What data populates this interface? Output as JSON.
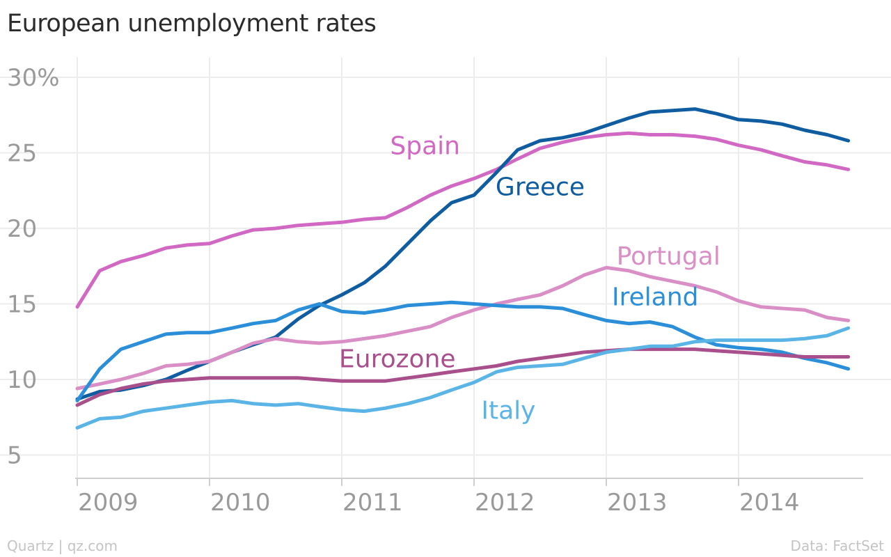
{
  "title": "European unemployment rates",
  "footer": {
    "credit": "Quartz | qz.com",
    "source": "Data: FactSet"
  },
  "chart_data": {
    "type": "line",
    "title": "European unemployment rates",
    "xlabel": "",
    "ylabel": "",
    "x_ticks": [
      "2009",
      "2010",
      "2011",
      "2012",
      "2013",
      "2014"
    ],
    "xlim": [
      2009.0,
      2015.0
    ],
    "y_ticks": [
      "30%",
      "25",
      "20",
      "15",
      "10",
      "5"
    ],
    "y_tick_values": [
      30,
      25,
      20,
      15,
      10,
      5
    ],
    "ylim": [
      3,
      31
    ],
    "grid": true,
    "legend": "inline labels",
    "series": [
      {
        "name": "Spain",
        "color": "#d169c4",
        "x": [
          2009.0,
          2009.17,
          2009.33,
          2009.5,
          2009.67,
          2009.83,
          2010.0,
          2010.17,
          2010.33,
          2010.5,
          2010.67,
          2010.83,
          2011.0,
          2011.17,
          2011.33,
          2011.5,
          2011.67,
          2011.83,
          2012.0,
          2012.17,
          2012.33,
          2012.5,
          2012.67,
          2012.83,
          2013.0,
          2013.17,
          2013.33,
          2013.5,
          2013.67,
          2013.83,
          2014.0,
          2014.17,
          2014.33,
          2014.5,
          2014.67,
          2014.83
        ],
        "y": [
          14.8,
          17.2,
          17.8,
          18.2,
          18.7,
          18.9,
          19.0,
          19.5,
          19.9,
          20.0,
          20.2,
          20.3,
          20.4,
          20.6,
          20.7,
          21.4,
          22.2,
          22.8,
          23.3,
          23.9,
          24.6,
          25.3,
          25.7,
          26.0,
          26.2,
          26.3,
          26.2,
          26.2,
          26.1,
          25.9,
          25.5,
          25.2,
          24.8,
          24.4,
          24.2,
          23.9
        ]
      },
      {
        "name": "Greece",
        "color": "#0f5da0",
        "x": [
          2009.0,
          2009.17,
          2009.33,
          2009.5,
          2009.67,
          2009.83,
          2010.0,
          2010.17,
          2010.33,
          2010.5,
          2010.67,
          2010.83,
          2011.0,
          2011.17,
          2011.33,
          2011.5,
          2011.67,
          2011.83,
          2012.0,
          2012.17,
          2012.33,
          2012.5,
          2012.67,
          2012.83,
          2013.0,
          2013.17,
          2013.33,
          2013.5,
          2013.67,
          2013.83,
          2014.0,
          2014.17,
          2014.33,
          2014.5,
          2014.67,
          2014.83
        ],
        "y": [
          8.7,
          9.2,
          9.3,
          9.6,
          10.0,
          10.6,
          11.2,
          11.8,
          12.3,
          12.8,
          14.0,
          14.9,
          15.6,
          16.4,
          17.5,
          19.0,
          20.5,
          21.7,
          22.2,
          23.7,
          25.2,
          25.8,
          26.0,
          26.3,
          26.8,
          27.3,
          27.7,
          27.8,
          27.9,
          27.6,
          27.2,
          27.1,
          26.9,
          26.5,
          26.2,
          25.8
        ]
      },
      {
        "name": "Portugal",
        "color": "#d98fc6",
        "x": [
          2009.0,
          2009.17,
          2009.33,
          2009.5,
          2009.67,
          2009.83,
          2010.0,
          2010.17,
          2010.33,
          2010.5,
          2010.67,
          2010.83,
          2011.0,
          2011.17,
          2011.33,
          2011.5,
          2011.67,
          2011.83,
          2012.0,
          2012.17,
          2012.33,
          2012.5,
          2012.67,
          2012.83,
          2013.0,
          2013.17,
          2013.33,
          2013.5,
          2013.67,
          2013.83,
          2014.0,
          2014.17,
          2014.33,
          2014.5,
          2014.67,
          2014.83
        ],
        "y": [
          9.4,
          9.7,
          10.0,
          10.4,
          10.9,
          11.0,
          11.2,
          11.8,
          12.4,
          12.7,
          12.5,
          12.4,
          12.5,
          12.7,
          12.9,
          13.2,
          13.5,
          14.1,
          14.6,
          15.0,
          15.3,
          15.6,
          16.2,
          16.9,
          17.4,
          17.2,
          16.8,
          16.5,
          16.2,
          15.8,
          15.2,
          14.8,
          14.7,
          14.6,
          14.1,
          13.9
        ]
      },
      {
        "name": "Ireland",
        "color": "#2a8fd8",
        "x": [
          2009.0,
          2009.17,
          2009.33,
          2009.5,
          2009.67,
          2009.83,
          2010.0,
          2010.17,
          2010.33,
          2010.5,
          2010.67,
          2010.83,
          2011.0,
          2011.17,
          2011.33,
          2011.5,
          2011.67,
          2011.83,
          2012.0,
          2012.17,
          2012.33,
          2012.5,
          2012.67,
          2012.83,
          2013.0,
          2013.17,
          2013.33,
          2013.5,
          2013.67,
          2013.83,
          2014.0,
          2014.17,
          2014.33,
          2014.5,
          2014.67,
          2014.83
        ],
        "y": [
          8.6,
          10.7,
          12.0,
          12.5,
          13.0,
          13.1,
          13.1,
          13.4,
          13.7,
          13.9,
          14.6,
          15.0,
          14.5,
          14.4,
          14.6,
          14.9,
          15.0,
          15.1,
          15.0,
          14.9,
          14.8,
          14.8,
          14.7,
          14.3,
          13.9,
          13.7,
          13.8,
          13.5,
          12.8,
          12.3,
          12.1,
          12.0,
          11.8,
          11.4,
          11.1,
          10.7
        ]
      },
      {
        "name": "Eurozone",
        "color": "#a84f8c",
        "x": [
          2009.0,
          2009.17,
          2009.33,
          2009.5,
          2009.67,
          2009.83,
          2010.0,
          2010.17,
          2010.33,
          2010.5,
          2010.67,
          2010.83,
          2011.0,
          2011.17,
          2011.33,
          2011.5,
          2011.67,
          2011.83,
          2012.0,
          2012.17,
          2012.33,
          2012.5,
          2012.67,
          2012.83,
          2013.0,
          2013.17,
          2013.33,
          2013.5,
          2013.67,
          2013.83,
          2014.0,
          2014.17,
          2014.33,
          2014.5,
          2014.67,
          2014.83
        ],
        "y": [
          8.3,
          9.0,
          9.4,
          9.7,
          9.9,
          10.0,
          10.1,
          10.1,
          10.1,
          10.1,
          10.1,
          10.0,
          9.9,
          9.9,
          9.9,
          10.1,
          10.3,
          10.5,
          10.7,
          10.9,
          11.2,
          11.4,
          11.6,
          11.8,
          11.9,
          12.0,
          12.0,
          12.0,
          12.0,
          11.9,
          11.8,
          11.7,
          11.6,
          11.5,
          11.5,
          11.5
        ]
      },
      {
        "name": "Italy",
        "color": "#5ab4e5",
        "x": [
          2009.0,
          2009.17,
          2009.33,
          2009.5,
          2009.67,
          2009.83,
          2010.0,
          2010.17,
          2010.33,
          2010.5,
          2010.67,
          2010.83,
          2011.0,
          2011.17,
          2011.33,
          2011.5,
          2011.67,
          2011.83,
          2012.0,
          2012.17,
          2012.33,
          2012.5,
          2012.67,
          2012.83,
          2013.0,
          2013.17,
          2013.33,
          2013.5,
          2013.67,
          2013.83,
          2014.0,
          2014.17,
          2014.33,
          2014.5,
          2014.67,
          2014.83
        ],
        "y": [
          6.8,
          7.4,
          7.5,
          7.9,
          8.1,
          8.3,
          8.5,
          8.6,
          8.4,
          8.3,
          8.4,
          8.2,
          8.0,
          7.9,
          8.1,
          8.4,
          8.8,
          9.3,
          9.8,
          10.5,
          10.8,
          10.9,
          11.0,
          11.4,
          11.8,
          12.0,
          12.2,
          12.2,
          12.5,
          12.6,
          12.6,
          12.6,
          12.6,
          12.7,
          12.9,
          13.4
        ]
      }
    ],
    "labels": [
      {
        "series": "Spain",
        "text": "Spain",
        "x": 2011.63,
        "y": 24.9
      },
      {
        "series": "Greece",
        "text": "Greece",
        "x": 2012.5,
        "y": 22.2
      },
      {
        "series": "Portugal",
        "text": "Portugal",
        "x": 2013.47,
        "y": 17.6
      },
      {
        "series": "Ireland",
        "text": "Ireland",
        "x": 2013.37,
        "y": 14.9
      },
      {
        "series": "Eurozone",
        "text": "Eurozone",
        "x": 2011.42,
        "y": 10.8
      },
      {
        "series": "Italy",
        "text": "Italy",
        "x": 2012.26,
        "y": 7.4
      }
    ]
  }
}
